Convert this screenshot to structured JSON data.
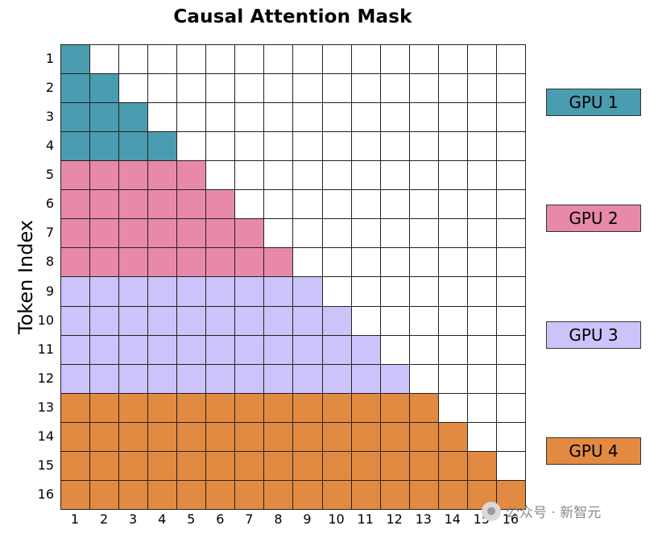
{
  "title": "Causal Attention Mask",
  "ylabel": "Token Index",
  "n": 16,
  "row_labels": [
    "1",
    "2",
    "3",
    "4",
    "5",
    "6",
    "7",
    "8",
    "9",
    "10",
    "11",
    "12",
    "13",
    "14",
    "15",
    "16"
  ],
  "col_labels": [
    "1",
    "2",
    "3",
    "4",
    "5",
    "6",
    "7",
    "8",
    "9",
    "10",
    "11",
    "12",
    "13",
    "14",
    "15",
    "16"
  ],
  "groups": [
    {
      "label": "GPU 1",
      "color": "#4a9cb0",
      "rows": [
        1,
        4
      ]
    },
    {
      "label": "GPU 2",
      "color": "#e889aa",
      "rows": [
        5,
        8
      ]
    },
    {
      "label": "GPU 3",
      "color": "#cdc3fb",
      "rows": [
        9,
        12
      ]
    },
    {
      "label": "GPU 4",
      "color": "#e38a42",
      "rows": [
        13,
        16
      ]
    }
  ],
  "watermark": "公众号 · 新智元"
}
